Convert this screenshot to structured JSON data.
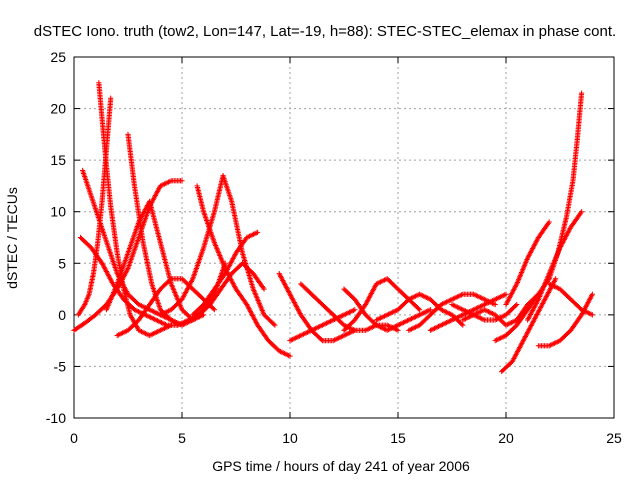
{
  "chart_data": {
    "type": "scatter",
    "title": "dSTEC Iono. truth (tow2, Lon=147, Lat=-19, h=88): STEC-STEC_elemax in phase cont.",
    "xlabel": "GPS time / hours of day 241 of year 2006",
    "ylabel": "dSTEC  / TECUs",
    "xlim": [
      0,
      25
    ],
    "ylim": [
      -10,
      25
    ],
    "xticks": [
      0,
      5,
      10,
      15,
      20,
      25
    ],
    "yticks": [
      -10,
      -5,
      0,
      5,
      10,
      15,
      20,
      25
    ],
    "grid": true,
    "marker": "plus",
    "color": "#ff0000",
    "series": [
      {
        "x": [
          0.0,
          0.5,
          1.0,
          1.5,
          2.0,
          2.5,
          3.0,
          3.5,
          4.0,
          4.5,
          5.0
        ],
        "y": [
          -1.5,
          -0.8,
          0.0,
          1.0,
          2.5,
          4.5,
          7.5,
          10.5,
          12.5,
          13.0,
          13.0
        ]
      },
      {
        "x": [
          0.4,
          0.8,
          1.2,
          1.6,
          2.0,
          2.5,
          3.0,
          3.5,
          4.0,
          4.5,
          5.0
        ],
        "y": [
          14.0,
          11.5,
          9.0,
          6.5,
          4.0,
          2.0,
          1.0,
          0.5,
          0.0,
          -0.5,
          -1.0
        ]
      },
      {
        "x": [
          0.3,
          0.8,
          1.3,
          1.8,
          2.3,
          2.8,
          3.3,
          3.8,
          4.3,
          4.8
        ],
        "y": [
          7.5,
          6.5,
          5.0,
          3.0,
          1.5,
          0.5,
          0.0,
          -0.5,
          -1.0,
          -1.0
        ]
      },
      {
        "x": [
          1.15,
          1.3,
          1.5,
          1.7,
          2.0,
          2.3,
          2.6,
          3.0,
          3.5,
          4.0,
          4.5
        ],
        "y": [
          22.5,
          19.0,
          14.5,
          10.5,
          6.0,
          2.5,
          0.0,
          -1.5,
          -2.0,
          -1.5,
          -1.0
        ]
      },
      {
        "x": [
          1.7,
          1.5,
          1.3,
          1.1,
          0.9,
          0.7,
          0.5,
          0.2
        ],
        "y": [
          21.0,
          16.0,
          11.0,
          7.0,
          4.0,
          2.0,
          1.0,
          0.0
        ]
      },
      {
        "x": [
          2.5,
          2.8,
          3.2,
          3.6,
          4.0,
          4.5,
          5.0,
          5.5,
          6.0
        ],
        "y": [
          17.5,
          12.5,
          7.0,
          3.0,
          0.5,
          -0.5,
          -1.0,
          -0.5,
          0.0
        ]
      },
      {
        "x": [
          2.0,
          2.5,
          3.0,
          3.5,
          4.0,
          4.5,
          5.0,
          5.5,
          6.0,
          6.5
        ],
        "y": [
          -2.0,
          -1.5,
          -0.5,
          1.0,
          2.5,
          3.5,
          3.5,
          2.5,
          1.5,
          0.5
        ]
      },
      {
        "x": [
          1.5,
          2.0,
          2.5,
          3.0,
          3.5,
          4.0,
          4.5,
          5.0,
          5.5,
          6.0,
          6.5,
          7.0
        ],
        "y": [
          0.5,
          3.0,
          6.0,
          9.0,
          11.0,
          7.0,
          3.0,
          0.5,
          -0.5,
          0.5,
          2.0,
          5.0
        ]
      },
      {
        "x": [
          5.7,
          6.0,
          6.5,
          7.0,
          7.5,
          8.0,
          8.5,
          9.0,
          9.5,
          10.0
        ],
        "y": [
          12.5,
          10.0,
          7.0,
          4.5,
          2.5,
          1.0,
          -1.0,
          -2.5,
          -3.5,
          -4.0
        ]
      },
      {
        "x": [
          4.0,
          4.5,
          5.0,
          5.5,
          6.0,
          6.5,
          6.9,
          7.3,
          7.8,
          8.3,
          8.8,
          9.3
        ],
        "y": [
          0.0,
          0.5,
          1.5,
          3.5,
          6.5,
          10.0,
          13.5,
          11.0,
          6.0,
          2.5,
          0.0,
          -1.0
        ]
      },
      {
        "x": [
          5.5,
          6.0,
          6.5,
          7.0,
          7.5,
          8.0,
          8.5
        ],
        "y": [
          0.0,
          1.0,
          2.5,
          4.0,
          6.0,
          7.5,
          8.0
        ]
      },
      {
        "x": [
          4.8,
          5.3,
          5.8,
          6.3,
          6.8,
          7.3,
          7.8,
          8.3,
          8.8
        ],
        "y": [
          -1.0,
          -0.5,
          0.0,
          1.0,
          2.5,
          4.0,
          5.0,
          4.0,
          2.5
        ]
      },
      {
        "x": [
          9.5,
          10.0,
          10.5,
          11.0,
          11.5,
          12.0,
          12.5,
          13.0
        ],
        "y": [
          4.0,
          2.0,
          0.0,
          -1.5,
          -2.5,
          -2.5,
          -2.0,
          -1.5
        ]
      },
      {
        "x": [
          10.0,
          10.5,
          11.0,
          11.5,
          12.0,
          12.5,
          13.0
        ],
        "y": [
          -2.5,
          -2.0,
          -1.5,
          -1.0,
          -0.5,
          0.0,
          0.5
        ]
      },
      {
        "x": [
          10.5,
          11.0,
          11.5,
          12.0,
          12.5,
          13.0,
          13.5,
          14.0,
          14.5,
          15.0
        ],
        "y": [
          3.0,
          2.0,
          1.0,
          0.0,
          -1.0,
          -1.5,
          -1.5,
          -1.0,
          -1.0,
          -1.5
        ]
      },
      {
        "x": [
          12.5,
          13.0,
          13.5,
          14.0,
          14.5,
          15.0,
          15.5,
          16.0,
          16.5
        ],
        "y": [
          2.5,
          1.5,
          0.0,
          -1.0,
          -1.5,
          -1.0,
          -0.5,
          0.0,
          0.5
        ]
      },
      {
        "x": [
          12.5,
          13.0,
          13.5,
          14.0,
          14.5,
          15.0,
          15.5,
          16.0
        ],
        "y": [
          -1.5,
          -0.5,
          1.0,
          3.0,
          3.5,
          2.5,
          1.5,
          0.5
        ]
      },
      {
        "x": [
          14.0,
          14.5,
          15.0,
          15.5,
          16.0,
          16.5,
          17.0,
          17.5,
          18.0
        ],
        "y": [
          -0.5,
          0.0,
          0.5,
          1.5,
          2.0,
          1.5,
          0.5,
          0.0,
          -1.0
        ]
      },
      {
        "x": [
          15.5,
          16.0,
          16.5,
          17.0,
          17.5,
          18.0,
          18.5,
          19.0,
          19.5
        ],
        "y": [
          -1.5,
          -1.0,
          0.0,
          1.0,
          1.5,
          2.0,
          2.0,
          1.5,
          1.0
        ]
      },
      {
        "x": [
          16.5,
          17.0,
          17.5,
          18.0,
          18.5,
          19.0,
          19.5,
          20.0
        ],
        "y": [
          -1.5,
          -1.0,
          -0.5,
          0.0,
          0.5,
          1.0,
          1.5,
          2.0
        ]
      },
      {
        "x": [
          17.5,
          18.0,
          18.5,
          19.0,
          19.5,
          20.0,
          20.5
        ],
        "y": [
          1.0,
          0.5,
          0.0,
          -0.5,
          -0.5,
          0.0,
          1.0
        ]
      },
      {
        "x": [
          18.0,
          18.5,
          19.0,
          19.5,
          20.0,
          20.5,
          21.0,
          21.5
        ],
        "y": [
          -0.5,
          0.0,
          0.5,
          0.0,
          -1.0,
          -0.5,
          1.0,
          2.0
        ]
      },
      {
        "x": [
          19.5,
          20.0,
          20.5,
          21.0,
          21.5,
          22.0
        ],
        "y": [
          -2.5,
          -2.0,
          -1.0,
          0.5,
          2.0,
          3.5
        ]
      },
      {
        "x": [
          19.8,
          20.3,
          20.8,
          21.3,
          21.8,
          22.3
        ],
        "y": [
          -5.5,
          -4.5,
          -2.5,
          -0.5,
          1.5,
          3.5
        ]
      },
      {
        "x": [
          20.0,
          20.5,
          21.0,
          21.5,
          22.0
        ],
        "y": [
          1.0,
          3.0,
          5.5,
          7.5,
          9.0
        ]
      },
      {
        "x": [
          21.0,
          21.5,
          22.0,
          22.5,
          23.0,
          23.5
        ],
        "y": [
          -0.5,
          1.5,
          4.0,
          6.5,
          8.5,
          10.0
        ]
      },
      {
        "x": [
          21.5,
          22.0,
          22.5,
          23.0,
          23.5,
          24.0
        ],
        "y": [
          -3.0,
          -3.0,
          -2.5,
          -1.5,
          0.0,
          2.0
        ]
      },
      {
        "x": [
          22.0,
          22.4,
          22.8,
          23.1,
          23.3,
          23.5
        ],
        "y": [
          3.5,
          6.0,
          9.5,
          13.0,
          17.0,
          21.5
        ]
      },
      {
        "x": [
          22.0,
          22.5,
          23.0,
          23.5,
          24.0
        ],
        "y": [
          3.0,
          2.5,
          1.5,
          0.5,
          0.0
        ]
      }
    ]
  }
}
